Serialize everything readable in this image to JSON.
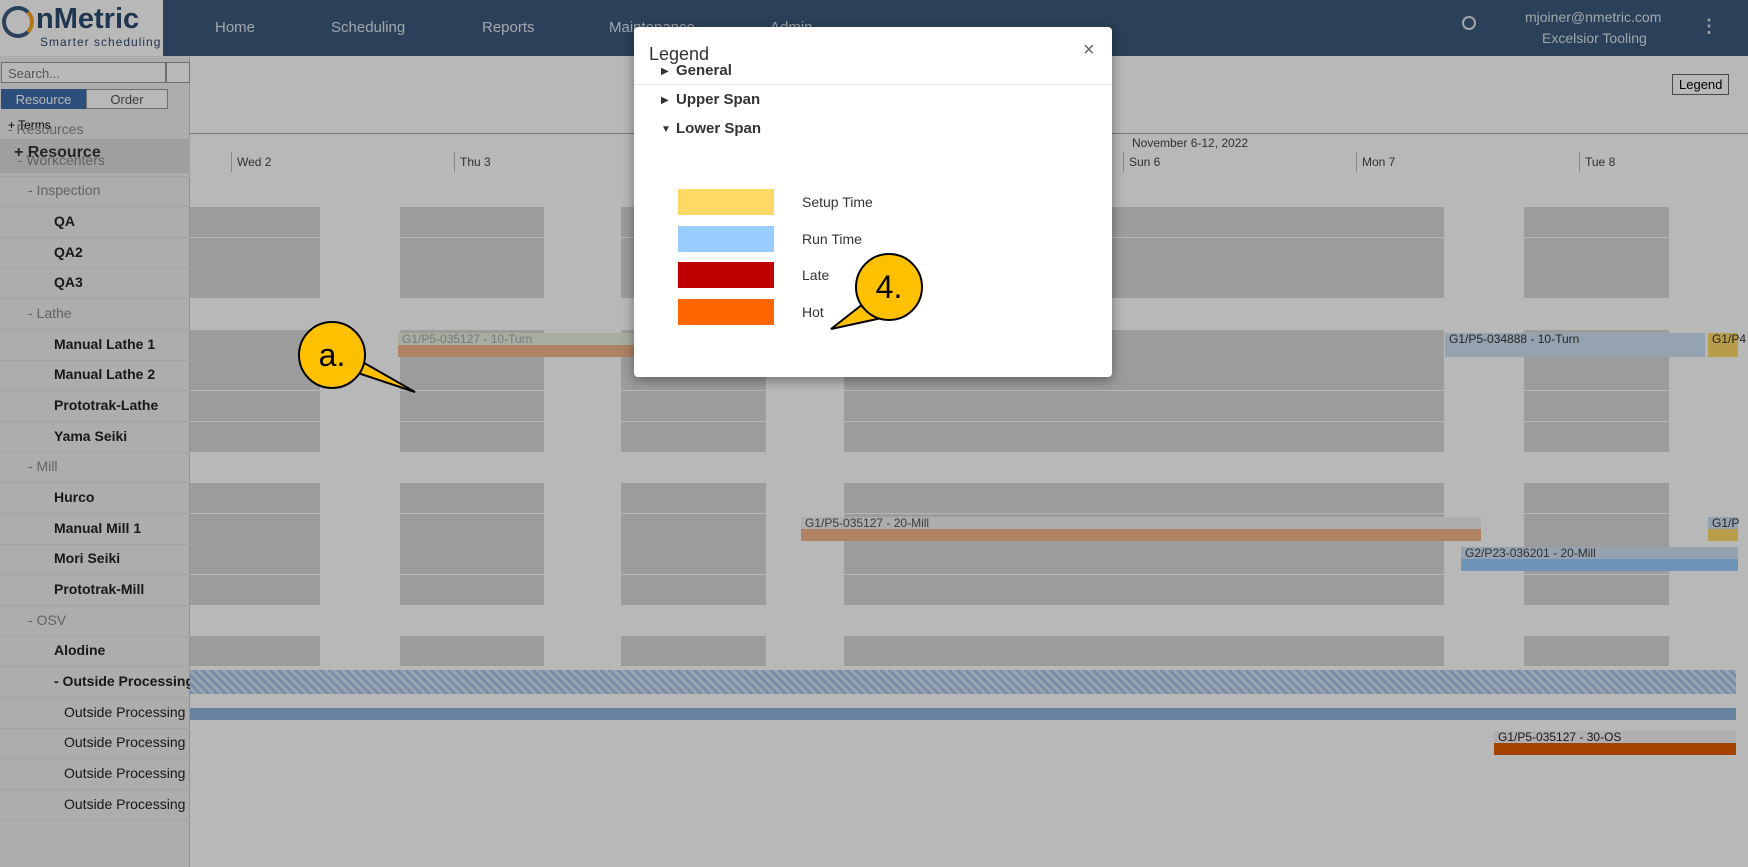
{
  "header": {
    "logo": "nMetric",
    "tagline": "Smarter scheduling",
    "nav": [
      "Home",
      "Scheduling",
      "Reports",
      "Maintenance",
      "Admin"
    ],
    "user": "mjoiner@nmetric.com",
    "company": "Excelsior Tooling"
  },
  "sidebar": {
    "search_placeholder": "Search...",
    "tabs": [
      "Resource",
      "Order"
    ],
    "terms": "Terms",
    "heading": "Resource",
    "tree": [
      {
        "label": "- Resources",
        "level": 0,
        "kind": "group"
      },
      {
        "label": "- Workcenters",
        "level": 1,
        "kind": "group"
      },
      {
        "label": "- Inspection",
        "level": 2,
        "kind": "group"
      },
      {
        "label": "QA",
        "level": 3,
        "kind": "leaf"
      },
      {
        "label": "QA2",
        "level": 3,
        "kind": "leaf"
      },
      {
        "label": "QA3",
        "level": 3,
        "kind": "leaf"
      },
      {
        "label": "- Lathe",
        "level": 2,
        "kind": "group"
      },
      {
        "label": "Manual Lathe 1",
        "level": 3,
        "kind": "leaf"
      },
      {
        "label": "Manual Lathe 2",
        "level": 3,
        "kind": "leaf"
      },
      {
        "label": "Prototrak-Lathe",
        "level": 3,
        "kind": "leaf"
      },
      {
        "label": "Yama Seiki",
        "level": 3,
        "kind": "leaf"
      },
      {
        "label": "- Mill",
        "level": 2,
        "kind": "group"
      },
      {
        "label": "Hurco",
        "level": 3,
        "kind": "leaf"
      },
      {
        "label": "Manual Mill 1",
        "level": 3,
        "kind": "leaf"
      },
      {
        "label": "Mori Seiki",
        "level": 3,
        "kind": "leaf"
      },
      {
        "label": "Prototrak-Mill",
        "level": 3,
        "kind": "leaf"
      },
      {
        "label": "- OSV",
        "level": 2,
        "kind": "group"
      },
      {
        "label": "Alodine",
        "level": 3,
        "kind": "leaf"
      },
      {
        "label": "- Outside Processing",
        "level": 3,
        "kind": "parent"
      },
      {
        "label": "Outside Processing",
        "level": 4,
        "kind": "sub"
      },
      {
        "label": "Outside Processing",
        "level": 4,
        "kind": "sub"
      },
      {
        "label": "Outside Processing",
        "level": 4,
        "kind": "sub"
      },
      {
        "label": "Outside Processing",
        "level": 4,
        "kind": "sub"
      }
    ]
  },
  "gantt": {
    "legend_button": "Legend",
    "week": "November 6-12, 2022",
    "days": [
      "Wed 2",
      "Thu 3",
      "Sun 6",
      "Mon 7",
      "Tue 8"
    ],
    "bars": [
      "G1/P5-035127 - 10-Turn",
      "G1/P5-034888 - 10-Turn",
      "G1/P4",
      "G1/P5-035127 - 20-Mill",
      "G1/P",
      "G2/P23-036201 - 20-Mill",
      "G1/P5-035127 - 30-OS"
    ]
  },
  "modal": {
    "title": "Legend",
    "close": "×",
    "sections": [
      "General",
      "Upper Span",
      "Lower Span"
    ],
    "items": [
      {
        "label": "Setup Time",
        "color": "#ffd966"
      },
      {
        "label": "Run Time",
        "color": "#99ccff"
      },
      {
        "label": "Late",
        "color": "#c00000"
      },
      {
        "label": "Hot",
        "color": "#ff6600"
      }
    ]
  },
  "callouts": [
    "a.",
    "4."
  ]
}
